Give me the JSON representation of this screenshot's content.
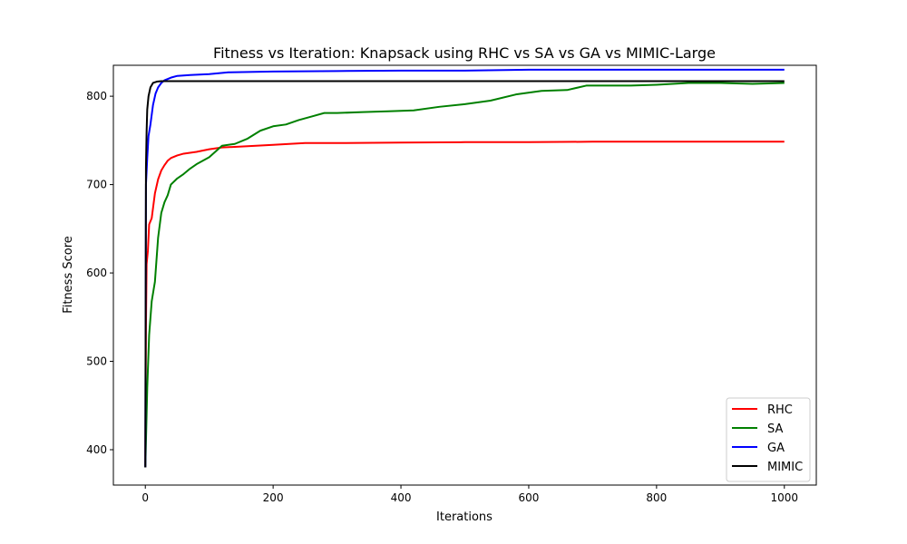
{
  "chart_data": {
    "type": "line",
    "title": "Fitness vs Iteration: Knapsack using RHC vs SA vs GA vs MIMIC-Large",
    "xlabel": "Iterations",
    "ylabel": "Fitness Score",
    "xlim": [
      -50,
      1050
    ],
    "ylim": [
      360,
      835
    ],
    "xticks": [
      0,
      200,
      400,
      600,
      800,
      1000
    ],
    "yticks": [
      400,
      500,
      600,
      700,
      800
    ],
    "grid": false,
    "legend_position": "bottom-right",
    "series": [
      {
        "name": "RHC",
        "color": "#ff0000",
        "points": [
          [
            0,
            380
          ],
          [
            1,
            540
          ],
          [
            2,
            610
          ],
          [
            4,
            625
          ],
          [
            6,
            655
          ],
          [
            10,
            662
          ],
          [
            15,
            690
          ],
          [
            20,
            706
          ],
          [
            25,
            716
          ],
          [
            30,
            722
          ],
          [
            35,
            727
          ],
          [
            40,
            730
          ],
          [
            50,
            733
          ],
          [
            60,
            735
          ],
          [
            80,
            737
          ],
          [
            100,
            740
          ],
          [
            120,
            742
          ],
          [
            150,
            743
          ],
          [
            200,
            745
          ],
          [
            250,
            747
          ],
          [
            300,
            747
          ],
          [
            400,
            747.5
          ],
          [
            500,
            748
          ],
          [
            600,
            748
          ],
          [
            700,
            748.5
          ],
          [
            800,
            748.5
          ],
          [
            900,
            748.5
          ],
          [
            1000,
            748.5
          ]
        ]
      },
      {
        "name": "SA",
        "color": "#008000",
        "points": [
          [
            0,
            380
          ],
          [
            3,
            470
          ],
          [
            6,
            530
          ],
          [
            10,
            568
          ],
          [
            15,
            590
          ],
          [
            20,
            640
          ],
          [
            25,
            668
          ],
          [
            30,
            680
          ],
          [
            35,
            688
          ],
          [
            40,
            700
          ],
          [
            50,
            707
          ],
          [
            60,
            712
          ],
          [
            70,
            718
          ],
          [
            80,
            723
          ],
          [
            90,
            727
          ],
          [
            100,
            731
          ],
          [
            120,
            744
          ],
          [
            140,
            746
          ],
          [
            160,
            752
          ],
          [
            180,
            761
          ],
          [
            200,
            766
          ],
          [
            220,
            768
          ],
          [
            240,
            773
          ],
          [
            260,
            777
          ],
          [
            280,
            781
          ],
          [
            300,
            781
          ],
          [
            340,
            782
          ],
          [
            380,
            783
          ],
          [
            420,
            784
          ],
          [
            460,
            788
          ],
          [
            500,
            791
          ],
          [
            540,
            795
          ],
          [
            580,
            802
          ],
          [
            620,
            806
          ],
          [
            660,
            807
          ],
          [
            690,
            812
          ],
          [
            720,
            812
          ],
          [
            760,
            812
          ],
          [
            800,
            813
          ],
          [
            850,
            815
          ],
          [
            900,
            815
          ],
          [
            950,
            814
          ],
          [
            1000,
            815
          ]
        ]
      },
      {
        "name": "GA",
        "color": "#0000ff",
        "points": [
          [
            0,
            380
          ],
          [
            1,
            700
          ],
          [
            3,
            730
          ],
          [
            5,
            755
          ],
          [
            8,
            768
          ],
          [
            12,
            790
          ],
          [
            16,
            803
          ],
          [
            20,
            810
          ],
          [
            25,
            815
          ],
          [
            30,
            818
          ],
          [
            40,
            821
          ],
          [
            50,
            823
          ],
          [
            70,
            824
          ],
          [
            100,
            825
          ],
          [
            130,
            827
          ],
          [
            200,
            828
          ],
          [
            300,
            828.5
          ],
          [
            400,
            829
          ],
          [
            500,
            829
          ],
          [
            600,
            830
          ],
          [
            700,
            830
          ],
          [
            800,
            830
          ],
          [
            900,
            830
          ],
          [
            1000,
            830
          ]
        ]
      },
      {
        "name": "MIMIC",
        "color": "#000000",
        "points": [
          [
            0,
            380
          ],
          [
            1,
            720
          ],
          [
            2,
            760
          ],
          [
            3,
            785
          ],
          [
            5,
            800
          ],
          [
            8,
            810
          ],
          [
            12,
            815
          ],
          [
            18,
            816.5
          ],
          [
            25,
            817
          ],
          [
            100,
            817
          ],
          [
            200,
            817
          ],
          [
            400,
            817
          ],
          [
            600,
            817
          ],
          [
            800,
            817
          ],
          [
            1000,
            817
          ]
        ]
      }
    ]
  }
}
